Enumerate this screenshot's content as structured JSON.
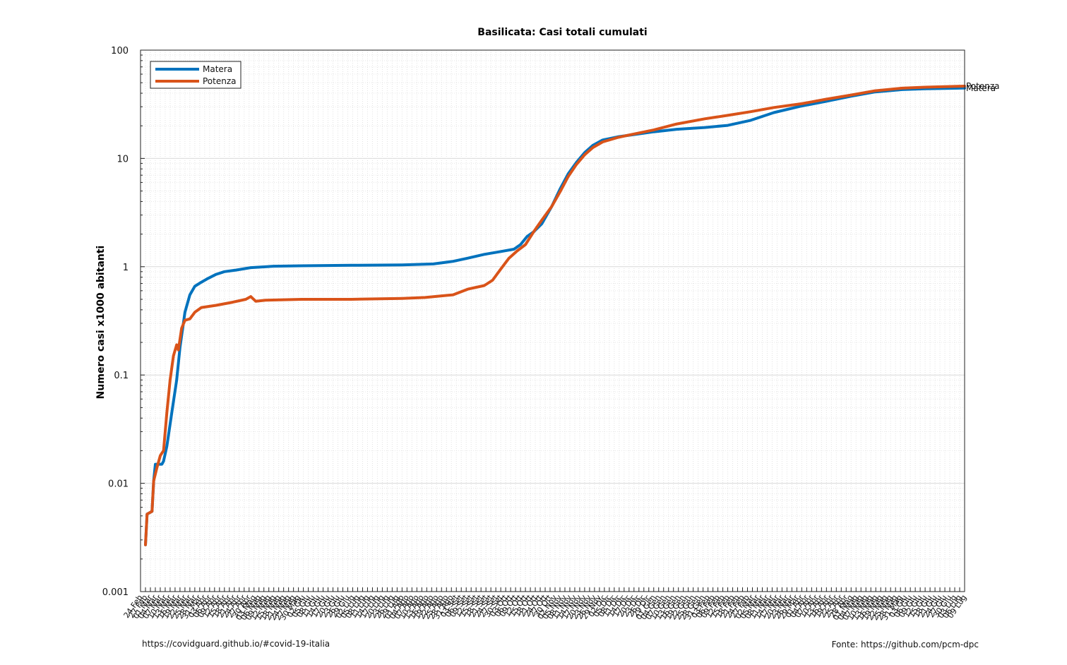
{
  "chart_data": {
    "type": "line",
    "title": "Basilicata: Casi totali cumulati",
    "ylabel": "Numero casi x1000 abitanti",
    "xlabel": "",
    "y_scale": "log",
    "ylim": [
      0.001,
      100
    ],
    "yticks": [
      "0.001",
      "0.01",
      "0.1",
      "1",
      "10",
      "100"
    ],
    "xlim": [
      "2020-02-24",
      "2021-07-09"
    ],
    "x_tick_interval_days": 3,
    "xtick_labels_visible_examples": [
      "24 Feb",
      "04 Mar",
      "10 Mar",
      "19 Mar",
      "28 Mar",
      "13 Apr",
      "16 Mag",
      "02 Lug",
      "30 Set",
      "06 Ott",
      "11 Nov",
      "05 Dic",
      "12 Gen",
      "30 Apr",
      "19 Mag",
      "09 Lug"
    ],
    "grid": true,
    "minor_grid": true,
    "legend_position": "top-left",
    "series": [
      {
        "name": "Matera",
        "color": "#0072BD",
        "points": [
          [
            "2020-02-27",
            0.0027
          ],
          [
            "2020-02-28",
            0.0052
          ],
          [
            "2020-03-02",
            0.0055
          ],
          [
            "2020-03-03",
            0.0105
          ],
          [
            "2020-03-04",
            0.015
          ],
          [
            "2020-03-08",
            0.015
          ],
          [
            "2020-03-09",
            0.016
          ],
          [
            "2020-03-11",
            0.022
          ],
          [
            "2020-03-14",
            0.045
          ],
          [
            "2020-03-17",
            0.09
          ],
          [
            "2020-03-19",
            0.18
          ],
          [
            "2020-03-22",
            0.38
          ],
          [
            "2020-03-25",
            0.55
          ],
          [
            "2020-03-28",
            0.66
          ],
          [
            "2020-04-01",
            0.72
          ],
          [
            "2020-04-05",
            0.78
          ],
          [
            "2020-04-10",
            0.85
          ],
          [
            "2020-04-15",
            0.9
          ],
          [
            "2020-04-22",
            0.93
          ],
          [
            "2020-05-01",
            0.98
          ],
          [
            "2020-05-15",
            1.01
          ],
          [
            "2020-06-01",
            1.02
          ],
          [
            "2020-07-01",
            1.03
          ],
          [
            "2020-08-01",
            1.04
          ],
          [
            "2020-08-20",
            1.06
          ],
          [
            "2020-09-01",
            1.12
          ],
          [
            "2020-09-10",
            1.2
          ],
          [
            "2020-09-20",
            1.3
          ],
          [
            "2020-09-30",
            1.38
          ],
          [
            "2020-10-08",
            1.45
          ],
          [
            "2020-10-12",
            1.6
          ],
          [
            "2020-10-16",
            1.9
          ],
          [
            "2020-10-20",
            2.1
          ],
          [
            "2020-10-25",
            2.5
          ],
          [
            "2020-10-31",
            3.6
          ],
          [
            "2020-11-05",
            5.2
          ],
          [
            "2020-11-10",
            7.2
          ],
          [
            "2020-11-15",
            9.2
          ],
          [
            "2020-11-20",
            11.3
          ],
          [
            "2020-11-25",
            13.2
          ],
          [
            "2020-12-01",
            14.8
          ],
          [
            "2020-12-10",
            15.8
          ],
          [
            "2020-12-20",
            16.6
          ],
          [
            "2021-01-01",
            17.6
          ],
          [
            "2021-01-15",
            18.6
          ],
          [
            "2021-02-01",
            19.3
          ],
          [
            "2021-02-15",
            20.2
          ],
          [
            "2021-03-01",
            22.5
          ],
          [
            "2021-03-15",
            26.5
          ],
          [
            "2021-04-01",
            30.5
          ],
          [
            "2021-04-15",
            33.5
          ],
          [
            "2021-05-01",
            37.5
          ],
          [
            "2021-05-15",
            41.0
          ],
          [
            "2021-06-01",
            43.2
          ],
          [
            "2021-06-15",
            44.0
          ],
          [
            "2021-07-09",
            44.6
          ]
        ]
      },
      {
        "name": "Potenza",
        "color": "#D95319",
        "points": [
          [
            "2020-02-27",
            0.0027
          ],
          [
            "2020-02-28",
            0.0052
          ],
          [
            "2020-03-02",
            0.0055
          ],
          [
            "2020-03-03",
            0.0105
          ],
          [
            "2020-03-05",
            0.014
          ],
          [
            "2020-03-07",
            0.018
          ],
          [
            "2020-03-09",
            0.02
          ],
          [
            "2020-03-11",
            0.045
          ],
          [
            "2020-03-13",
            0.09
          ],
          [
            "2020-03-15",
            0.15
          ],
          [
            "2020-03-17",
            0.19
          ],
          [
            "2020-03-18",
            0.17
          ],
          [
            "2020-03-20",
            0.27
          ],
          [
            "2020-03-22",
            0.32
          ],
          [
            "2020-03-25",
            0.33
          ],
          [
            "2020-03-28",
            0.38
          ],
          [
            "2020-04-01",
            0.42
          ],
          [
            "2020-04-10",
            0.44
          ],
          [
            "2020-04-20",
            0.47
          ],
          [
            "2020-04-28",
            0.5
          ],
          [
            "2020-05-01",
            0.53
          ],
          [
            "2020-05-04",
            0.48
          ],
          [
            "2020-05-10",
            0.49
          ],
          [
            "2020-06-01",
            0.5
          ],
          [
            "2020-07-01",
            0.5
          ],
          [
            "2020-08-01",
            0.51
          ],
          [
            "2020-08-15",
            0.52
          ],
          [
            "2020-09-01",
            0.55
          ],
          [
            "2020-09-10",
            0.62
          ],
          [
            "2020-09-20",
            0.67
          ],
          [
            "2020-09-25",
            0.75
          ],
          [
            "2020-09-30",
            0.95
          ],
          [
            "2020-10-05",
            1.2
          ],
          [
            "2020-10-10",
            1.4
          ],
          [
            "2020-10-15",
            1.6
          ],
          [
            "2020-10-20",
            2.1
          ],
          [
            "2020-10-25",
            2.7
          ],
          [
            "2020-10-31",
            3.6
          ],
          [
            "2020-11-05",
            4.9
          ],
          [
            "2020-11-10",
            6.8
          ],
          [
            "2020-11-15",
            8.8
          ],
          [
            "2020-11-20",
            10.8
          ],
          [
            "2020-11-25",
            12.6
          ],
          [
            "2020-12-01",
            14.2
          ],
          [
            "2020-12-10",
            15.6
          ],
          [
            "2020-12-20",
            16.8
          ],
          [
            "2021-01-01",
            18.3
          ],
          [
            "2021-01-15",
            20.8
          ],
          [
            "2021-02-01",
            23.2
          ],
          [
            "2021-02-15",
            25.0
          ],
          [
            "2021-03-01",
            27.0
          ],
          [
            "2021-03-15",
            29.5
          ],
          [
            "2021-04-01",
            32.0
          ],
          [
            "2021-04-15",
            35.0
          ],
          [
            "2021-05-01",
            38.5
          ],
          [
            "2021-05-15",
            42.0
          ],
          [
            "2021-06-01",
            44.5
          ],
          [
            "2021-06-15",
            45.5
          ],
          [
            "2021-07-09",
            46.5
          ]
        ]
      }
    ]
  },
  "footer": {
    "left": "https://covidguard.github.io/#covid-19-italia",
    "right": "Fonte: https://github.com/pcm-dpc"
  }
}
